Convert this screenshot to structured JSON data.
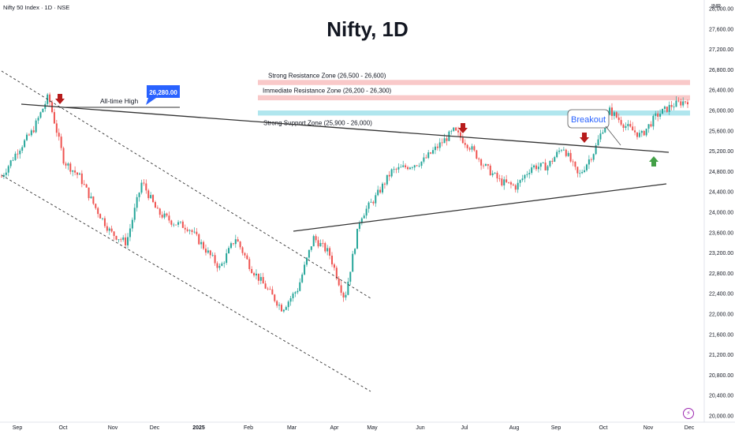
{
  "header": {
    "symbol": "Nifty 50 Index · 1D · NSE",
    "title": "Nifty, 1D",
    "currency": "INR"
  },
  "colors": {
    "up": "#26a69a",
    "down": "#ef5350",
    "resistance": "#f8c0c0",
    "support": "#a7e3ec",
    "arrow_down": "#b71c1c",
    "arrow_up": "#43a047",
    "callout": "#2962ff"
  },
  "chart_data": {
    "type": "candlestick",
    "title": "Nifty, 1D",
    "ylim": [
      20000,
      28400
    ],
    "y_ticks": [
      "28,000.00",
      "27,600.00",
      "27,200.00",
      "26,800.00",
      "26,400.00",
      "26,000.00",
      "25,600.00",
      "25,200.00",
      "24,800.00",
      "24,400.00",
      "24,000.00",
      "23,600.00",
      "23,200.00",
      "22,800.00",
      "22,400.00",
      "22,000.00",
      "21,600.00",
      "21,200.00",
      "20,800.00",
      "20,400.00",
      "20,000.00"
    ],
    "x_ticks": [
      "Sep",
      "Oct",
      "Nov",
      "Dec",
      "2025",
      "Feb",
      "Mar",
      "Apr",
      "May",
      "Jun",
      "Jul",
      "Aug",
      "Sep",
      "Oct",
      "Nov",
      "Dec"
    ],
    "approx_close_path": [
      [
        "Sep",
        24700
      ],
      [
        "Sep",
        25200
      ],
      [
        "Sep",
        25600
      ],
      [
        "Oct",
        26280
      ],
      [
        "Oct",
        25000
      ],
      [
        "Oct",
        24700
      ],
      [
        "Nov",
        24100
      ],
      [
        "Nov",
        23600
      ],
      [
        "Nov",
        23400
      ],
      [
        "Dec",
        24600
      ],
      [
        "Dec",
        24000
      ],
      [
        "Dec",
        23800
      ],
      [
        "2025",
        23700
      ],
      [
        "2025",
        23300
      ],
      [
        "2025",
        22900
      ],
      [
        "Feb",
        23500
      ],
      [
        "Feb",
        22900
      ],
      [
        "Feb",
        22500
      ],
      [
        "Mar",
        22100
      ],
      [
        "Mar",
        22500
      ],
      [
        "Mar",
        23500
      ],
      [
        "Apr",
        23200
      ],
      [
        "Apr",
        22300
      ],
      [
        "Apr",
        23900
      ],
      [
        "May",
        24300
      ],
      [
        "May",
        24800
      ],
      [
        "May",
        24900
      ],
      [
        "Jun",
        25000
      ],
      [
        "Jun",
        25300
      ],
      [
        "Jul",
        25600
      ],
      [
        "Jul",
        25300
      ],
      [
        "Jul",
        24900
      ],
      [
        "Aug",
        24600
      ],
      [
        "Aug",
        24500
      ],
      [
        "Aug",
        24900
      ],
      [
        "Sep",
        24900
      ],
      [
        "Sep",
        25300
      ],
      [
        "Sep",
        24700
      ],
      [
        "Oct",
        25200
      ],
      [
        "Oct",
        26000
      ],
      [
        "Oct",
        25700
      ],
      [
        "Nov",
        25500
      ],
      [
        "Nov",
        25900
      ],
      [
        "Nov",
        26100
      ],
      [
        "Dec",
        26200
      ]
    ],
    "annotations": {
      "all_time_high_label": "All-time High",
      "all_time_high_value": "26,280.00",
      "strong_resistance": "Strong Resistance Zone (26,500 - 26,600)",
      "strong_resistance_range": [
        26500,
        26600
      ],
      "immediate_resistance": "Immediate Resistance Zone (26,200 - 26,300)",
      "immediate_resistance_range": [
        26200,
        26300
      ],
      "strong_support": "Strong Support Zone (25,900 - 26,000)",
      "strong_support_range": [
        25900,
        26000
      ],
      "breakout": "Breakout"
    }
  }
}
